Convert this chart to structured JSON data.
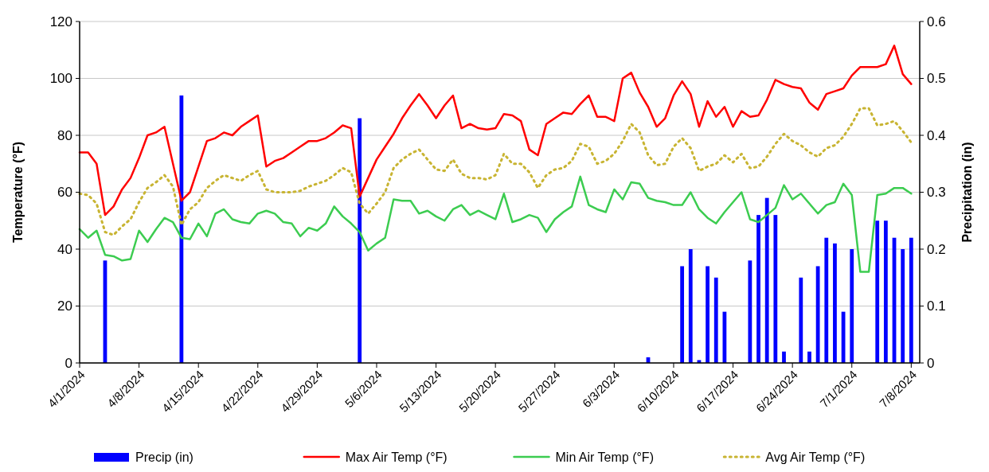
{
  "chart_data": {
    "type": "line",
    "ylabel": "Temperature (°F)",
    "y2label": "Precipitation (in)",
    "grid": "y",
    "legend": "bottom",
    "xlim": [
      "2024-04-01",
      "2024-07-09"
    ],
    "xticks": [
      {
        "value": "2024-04-01",
        "label": "4/1/2024"
      },
      {
        "value": "2024-04-08",
        "label": "4/8/2024"
      },
      {
        "value": "2024-04-15",
        "label": "4/15/2024"
      },
      {
        "value": "2024-04-22",
        "label": "4/22/2024"
      },
      {
        "value": "2024-04-29",
        "label": "4/29/2024"
      },
      {
        "value": "2024-05-06",
        "label": "5/6/2024"
      },
      {
        "value": "2024-05-13",
        "label": "5/13/2024"
      },
      {
        "value": "2024-05-20",
        "label": "5/20/2024"
      },
      {
        "value": "2024-05-27",
        "label": "5/27/2024"
      },
      {
        "value": "2024-06-03",
        "label": "6/3/2024"
      },
      {
        "value": "2024-06-10",
        "label": "6/10/2024"
      },
      {
        "value": "2024-06-17",
        "label": "6/17/2024"
      },
      {
        "value": "2024-06-24",
        "label": "6/24/2024"
      },
      {
        "value": "2024-07-01",
        "label": "7/1/2024"
      },
      {
        "value": "2024-07-08",
        "label": "7/8/2024"
      }
    ],
    "ylim": [
      0,
      120
    ],
    "yticks": [
      0,
      20,
      40,
      60,
      80,
      100,
      120
    ],
    "y2lim": [
      0,
      0.6
    ],
    "y2ticks": [
      0,
      0.1,
      0.2,
      0.3,
      0.4,
      0.5,
      0.6
    ],
    "x": [
      "2024-04-01",
      "2024-04-02",
      "2024-04-03",
      "2024-04-04",
      "2024-04-05",
      "2024-04-06",
      "2024-04-07",
      "2024-04-08",
      "2024-04-09",
      "2024-04-10",
      "2024-04-11",
      "2024-04-12",
      "2024-04-13",
      "2024-04-14",
      "2024-04-15",
      "2024-04-16",
      "2024-04-17",
      "2024-04-18",
      "2024-04-19",
      "2024-04-20",
      "2024-04-21",
      "2024-04-22",
      "2024-04-23",
      "2024-04-24",
      "2024-04-25",
      "2024-04-26",
      "2024-04-27",
      "2024-04-28",
      "2024-04-29",
      "2024-04-30",
      "2024-05-01",
      "2024-05-02",
      "2024-05-03",
      "2024-05-04",
      "2024-05-05",
      "2024-05-06",
      "2024-05-07",
      "2024-05-08",
      "2024-05-09",
      "2024-05-10",
      "2024-05-11",
      "2024-05-12",
      "2024-05-13",
      "2024-05-14",
      "2024-05-15",
      "2024-05-16",
      "2024-05-17",
      "2024-05-18",
      "2024-05-19",
      "2024-05-20",
      "2024-05-21",
      "2024-05-22",
      "2024-05-23",
      "2024-05-24",
      "2024-05-25",
      "2024-05-26",
      "2024-05-27",
      "2024-05-28",
      "2024-05-29",
      "2024-05-30",
      "2024-05-31",
      "2024-06-01",
      "2024-06-02",
      "2024-06-03",
      "2024-06-04",
      "2024-06-05",
      "2024-06-06",
      "2024-06-07",
      "2024-06-08",
      "2024-06-09",
      "2024-06-10",
      "2024-06-11",
      "2024-06-12",
      "2024-06-13",
      "2024-06-14",
      "2024-06-15",
      "2024-06-16",
      "2024-06-17",
      "2024-06-18",
      "2024-06-19",
      "2024-06-20",
      "2024-06-21",
      "2024-06-22",
      "2024-06-23",
      "2024-06-24",
      "2024-06-25",
      "2024-06-26",
      "2024-06-27",
      "2024-06-28",
      "2024-06-29",
      "2024-06-30",
      "2024-07-01",
      "2024-07-02",
      "2024-07-03",
      "2024-07-04",
      "2024-07-05",
      "2024-07-06",
      "2024-07-07",
      "2024-07-08"
    ],
    "series": [
      {
        "name": "Precip (in)",
        "type": "bar",
        "axis": "y2",
        "color": "#0000ff",
        "values": [
          null,
          null,
          null,
          0.18,
          null,
          null,
          null,
          null,
          null,
          null,
          null,
          null,
          0.47,
          null,
          null,
          null,
          null,
          null,
          null,
          null,
          null,
          null,
          null,
          null,
          null,
          null,
          null,
          null,
          null,
          null,
          null,
          null,
          null,
          0.43,
          null,
          null,
          null,
          null,
          null,
          null,
          null,
          null,
          null,
          null,
          null,
          null,
          null,
          null,
          null,
          null,
          null,
          null,
          null,
          null,
          null,
          null,
          null,
          null,
          null,
          null,
          null,
          null,
          null,
          null,
          null,
          null,
          null,
          0.01,
          null,
          null,
          null,
          0.17,
          0.2,
          0.005,
          0.17,
          0.15,
          0.09,
          null,
          null,
          0.18,
          0.26,
          0.29,
          0.26,
          0.02,
          null,
          0.15,
          0.02,
          0.17,
          0.22,
          0.21,
          0.09,
          0.2,
          null,
          null,
          0.25,
          0.25,
          0.22,
          0.2,
          0.22
        ]
      },
      {
        "name": "Max Air Temp (°F)",
        "color": "#ff0000",
        "line_style": "solid",
        "values": [
          74,
          74,
          70,
          52,
          55,
          61,
          65,
          72,
          80,
          81,
          83,
          70,
          57,
          60,
          69,
          78,
          79,
          81,
          80,
          83,
          85,
          87,
          69,
          71,
          72,
          74,
          76,
          78,
          78,
          79,
          81,
          83.5,
          82.5,
          58.5,
          65,
          71.5,
          76,
          80.5,
          86,
          90.5,
          94.5,
          90.5,
          86,
          90.5,
          94,
          82.5,
          84,
          82.5,
          82,
          82.5,
          87.5,
          87,
          85,
          75,
          73,
          84,
          86,
          88,
          87.5,
          91,
          94,
          86.5,
          86.5,
          85,
          100,
          102,
          95,
          90,
          83,
          86,
          94,
          99,
          94.5,
          83,
          92,
          86.5,
          90,
          83,
          88.5,
          86.5,
          87,
          92.5,
          99.5,
          98,
          97,
          96.5,
          91.5,
          89,
          94.5,
          95.5,
          96.5,
          101,
          104,
          104,
          104,
          105,
          111.5,
          101.5,
          98
        ]
      },
      {
        "name": "Min Air Temp (°F)",
        "color": "#3ccc50",
        "line_style": "solid",
        "values": [
          47,
          44,
          46.5,
          38,
          37.5,
          36,
          36.5,
          46.5,
          42.5,
          47,
          51,
          49.5,
          44,
          43.5,
          49,
          44.5,
          52.5,
          54,
          50.5,
          49.5,
          49,
          52.5,
          53.5,
          52.5,
          49.5,
          49,
          44.5,
          47.5,
          46.5,
          49,
          55,
          51.5,
          49,
          46,
          39.5,
          42,
          44,
          57.5,
          57,
          57,
          52.5,
          53.5,
          51.5,
          50,
          54,
          55.5,
          52,
          53.5,
          52,
          50.5,
          59.5,
          49.5,
          50.5,
          52,
          51,
          46,
          50.5,
          53,
          55,
          65.5,
          55.5,
          54,
          53,
          61,
          57.5,
          63.5,
          63,
          58,
          57,
          56.5,
          55.5,
          55.5,
          60,
          54,
          51,
          49,
          53,
          56.5,
          60,
          50.5,
          49.5,
          52,
          54.5,
          62.5,
          57.5,
          59.5,
          56,
          52.5,
          55.5,
          56.5,
          63,
          59,
          32,
          32,
          59,
          59.5,
          61.5,
          61.5,
          59.5
        ]
      },
      {
        "name": "Avg Air Temp (°F)",
        "color": "#c8b432",
        "line_style": "dotted",
        "values": [
          59.5,
          59,
          56,
          46,
          45,
          48,
          50.5,
          56.5,
          61.5,
          63.5,
          66,
          62,
          48.5,
          54,
          56.5,
          61.5,
          64,
          66,
          65,
          64,
          66,
          67.5,
          61,
          60,
          60,
          60,
          60.5,
          62,
          63,
          64,
          66,
          68.5,
          67,
          56,
          52.5,
          56,
          60,
          68.5,
          71.5,
          73.5,
          75,
          71.5,
          68,
          67.5,
          71.5,
          66.5,
          65,
          65,
          64.5,
          66,
          73.5,
          70,
          70,
          67,
          61.5,
          66,
          68,
          68.5,
          71,
          77,
          76,
          70,
          71,
          73.5,
          78,
          84,
          81,
          73,
          69.5,
          70,
          76,
          79,
          75.5,
          67.5,
          69,
          70,
          73,
          70.5,
          73.5,
          68.5,
          69,
          72.5,
          77,
          80.5,
          78,
          76.5,
          74,
          72.5,
          75.5,
          76.5,
          79.5,
          84,
          89.5,
          89.5,
          83.5,
          84,
          85,
          81.5,
          77.5
        ]
      }
    ]
  }
}
